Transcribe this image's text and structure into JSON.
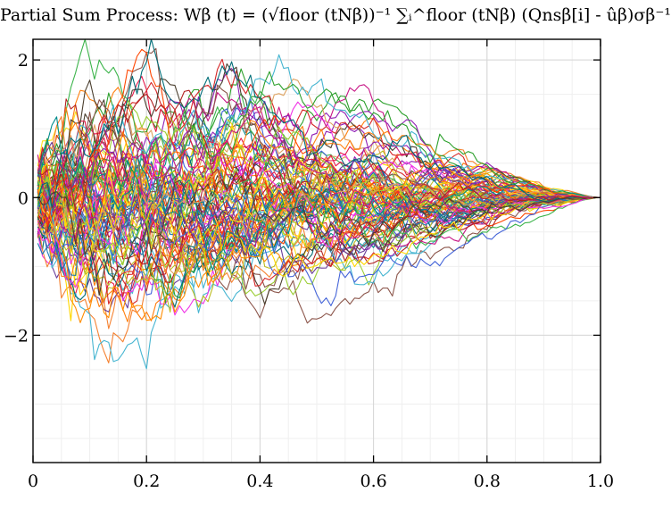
{
  "chart_data": {
    "type": "line",
    "title": "Partial Sum Process: Wβ (t) = (√floor (tNβ))⁻¹ ∑ᵢ^floor (tNβ) (Qnsβ[i] - ûβ)σβ⁻¹",
    "xlabel": "",
    "ylabel": "",
    "xlim": [
      0,
      1
    ],
    "ylim": [
      -3.85,
      2.3
    ],
    "x_ticks": [
      0,
      0.2,
      0.4,
      0.6,
      0.8,
      1.0
    ],
    "x_tick_labels": [
      "0",
      "0.2",
      "0.4",
      "0.6",
      "0.8",
      "1.0"
    ],
    "y_ticks": [
      -2,
      0,
      2
    ],
    "y_tick_labels": [
      "−2",
      "0",
      "2"
    ],
    "grid": true,
    "legend": "none",
    "series_count": 100,
    "points_per_series": 120,
    "end_value": 0,
    "value_range": [
      -3.85,
      2.3
    ],
    "palette": [
      "#e6194b",
      "#3cb44b",
      "#ffe119",
      "#4363d8",
      "#f58231",
      "#911eb4",
      "#46b5d1",
      "#bcbd22",
      "#f032e6",
      "#d62728",
      "#ff7f0e",
      "#2ca02c",
      "#1f77b4",
      "#8c564b",
      "#ffd700",
      "#ff4500",
      "#008b8b",
      "#9acd32",
      "#ff8c00",
      "#6a3d9a",
      "#dda15e",
      "#c71585",
      "#006d77",
      "#4b3f2f",
      "#b22222"
    ]
  }
}
